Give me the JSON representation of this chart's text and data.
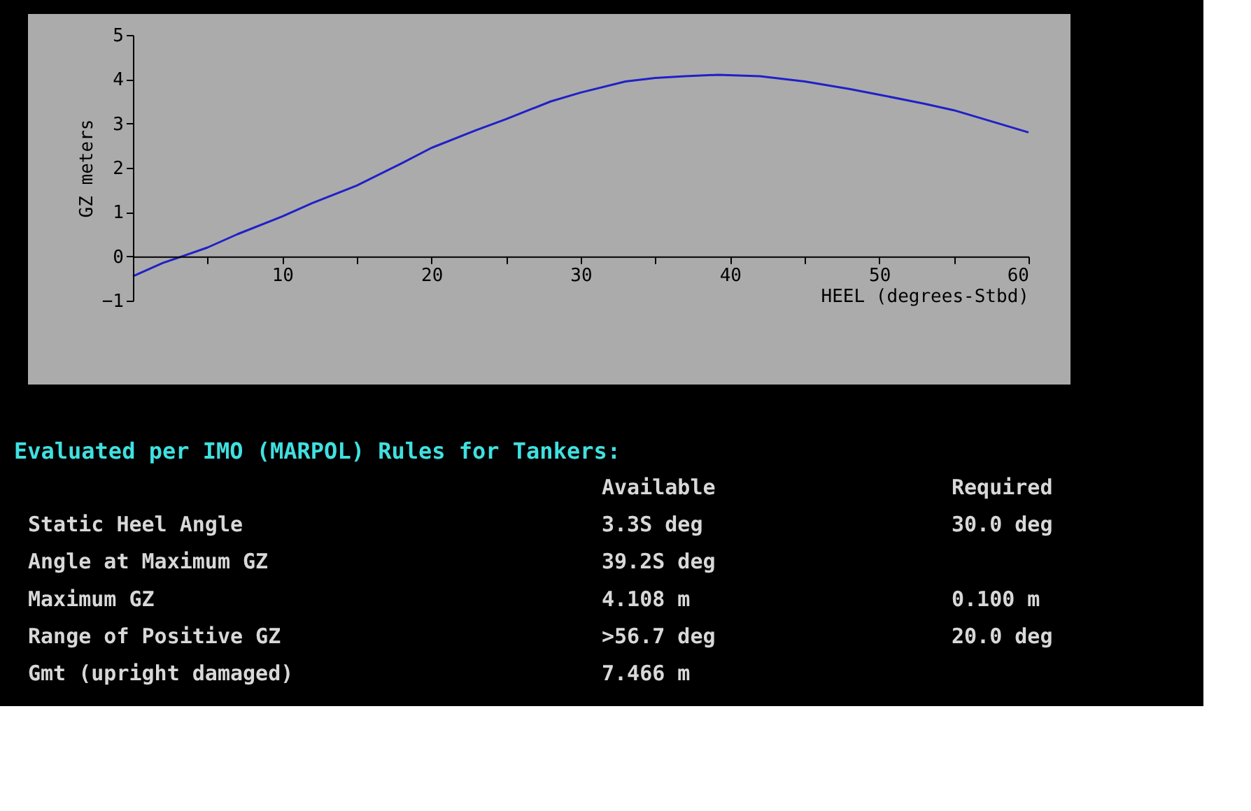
{
  "chart_data": [
    {
      "type": "line",
      "xlabel": "HEEL (degrees-Stbd)",
      "ylabel": "GZ meters",
      "x": [
        0,
        2,
        3.3,
        5,
        7,
        10,
        12,
        15,
        18,
        20,
        23,
        25,
        28,
        30,
        33,
        35,
        37,
        39.2,
        42,
        45,
        48,
        50,
        53,
        55,
        58,
        60
      ],
      "series": [
        {
          "color": "#2020c8",
          "values": [
            -0.45,
            -0.15,
            0,
            0.2,
            0.5,
            0.9,
            1.2,
            1.6,
            2.1,
            2.45,
            2.85,
            3.1,
            3.5,
            3.7,
            3.95,
            4.03,
            4.07,
            4.1,
            4.07,
            3.95,
            3.78,
            3.65,
            3.45,
            3.3,
            3.0,
            2.8
          ]
        }
      ],
      "xlim": [
        0,
        60
      ],
      "ylim": [
        -1,
        5
      ],
      "xticks": [
        {
          "value": 5,
          "label": null
        },
        10,
        {
          "value": 15,
          "label": null
        },
        20,
        {
          "value": 25,
          "label": null
        },
        30,
        {
          "value": 35,
          "label": null
        },
        40,
        {
          "value": 45,
          "label": null
        },
        50,
        {
          "value": 55,
          "label": null
        },
        60
      ],
      "yticks": [
        -1,
        0,
        1,
        2,
        3,
        4,
        5
      ],
      "grid": false
    },
    {
      "type": "other",
      "title": "Evaluated per IMO (MARPOL) Rules for Tankers:",
      "categories": [
        "Static Heel Angle",
        "Angle at Maximum GZ",
        "Maximum GZ",
        "Range of Positive GZ",
        "Gmt (upright damaged)"
      ],
      "series": [
        {
          "name": "Available",
          "color": "#d8d8d8",
          "values": [
            3.3,
            39.2,
            4.108,
            56.7,
            7.466
          ],
          "value_labels": [
            "3.3S deg",
            "39.2S deg",
            "4.108  m",
            ">56.7  deg",
            "7.466  m"
          ]
        },
        {
          "name": "Required",
          "color": "#d8d8d8",
          "values": [
            30.0,
            null,
            0.1,
            20.0,
            null
          ],
          "value_labels": [
            "30.0 deg",
            null,
            "0.100 m",
            "20.0 deg",
            null
          ]
        }
      ]
    }
  ]
}
